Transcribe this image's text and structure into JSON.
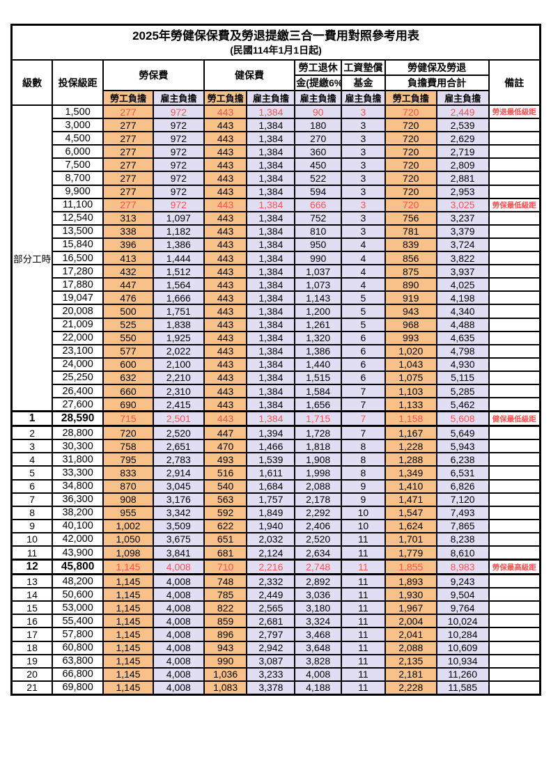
{
  "page": {
    "title": "2025年勞健保保費及勞退提繳三合一費用對照參考用表",
    "subtitle": "(民國114年1月1日起)"
  },
  "colors": {
    "employee_bg": "#F8C189",
    "employer_bg": "#E1DEF3",
    "highlight_text": "#FF5050",
    "border": "#000000"
  },
  "header": {
    "level": "級數",
    "bracket": "投保級距",
    "labor_insurance": "勞保費",
    "health_insurance": "健保費",
    "pension_line1": "勞工退休",
    "pension_line2": "金(提繳6%)",
    "wage_fund_line1": "工資墊償",
    "wage_fund_line2": "基金",
    "total_line1": "勞健保及勞退",
    "total_line2": "負擔費用合計",
    "note": "備註",
    "employee_label": "勞工負擔",
    "employer_label": "雇主負擔"
  },
  "part_time_label": "部分工時",
  "rows": [
    {
      "level": "",
      "bracket": "1,500",
      "values": [
        "277",
        "972",
        "443",
        "1,384",
        "90",
        "3",
        "720",
        "2,449"
      ],
      "note": "勞退最低級距",
      "highlight": true,
      "emphasize": false
    },
    {
      "level": "",
      "bracket": "3,000",
      "values": [
        "277",
        "972",
        "443",
        "1,384",
        "180",
        "3",
        "720",
        "2,539"
      ],
      "note": "",
      "highlight": false,
      "emphasize": false
    },
    {
      "level": "",
      "bracket": "4,500",
      "values": [
        "277",
        "972",
        "443",
        "1,384",
        "270",
        "3",
        "720",
        "2,629"
      ],
      "note": "",
      "highlight": false,
      "emphasize": false
    },
    {
      "level": "",
      "bracket": "6,000",
      "values": [
        "277",
        "972",
        "443",
        "1,384",
        "360",
        "3",
        "720",
        "2,719"
      ],
      "note": "",
      "highlight": false,
      "emphasize": false
    },
    {
      "level": "",
      "bracket": "7,500",
      "values": [
        "277",
        "972",
        "443",
        "1,384",
        "450",
        "3",
        "720",
        "2,809"
      ],
      "note": "",
      "highlight": false,
      "emphasize": false
    },
    {
      "level": "",
      "bracket": "8,700",
      "values": [
        "277",
        "972",
        "443",
        "1,384",
        "522",
        "3",
        "720",
        "2,881"
      ],
      "note": "",
      "highlight": false,
      "emphasize": false
    },
    {
      "level": "",
      "bracket": "9,900",
      "values": [
        "277",
        "972",
        "443",
        "1,384",
        "594",
        "3",
        "720",
        "2,953"
      ],
      "note": "",
      "highlight": false,
      "emphasize": false
    },
    {
      "level": "",
      "bracket": "11,100",
      "values": [
        "277",
        "972",
        "443",
        "1,384",
        "666",
        "3",
        "720",
        "3,025"
      ],
      "note": "勞保最低級距",
      "highlight": true,
      "emphasize": false
    },
    {
      "level": "",
      "bracket": "12,540",
      "values": [
        "313",
        "1,097",
        "443",
        "1,384",
        "752",
        "3",
        "756",
        "3,237"
      ],
      "note": "",
      "highlight": false,
      "emphasize": false
    },
    {
      "level": "",
      "bracket": "13,500",
      "values": [
        "338",
        "1,182",
        "443",
        "1,384",
        "810",
        "3",
        "781",
        "3,379"
      ],
      "note": "",
      "highlight": false,
      "emphasize": false
    },
    {
      "level": "",
      "bracket": "15,840",
      "values": [
        "396",
        "1,386",
        "443",
        "1,384",
        "950",
        "4",
        "839",
        "3,724"
      ],
      "note": "",
      "highlight": false,
      "emphasize": false
    },
    {
      "level": "",
      "bracket": "16,500",
      "values": [
        "413",
        "1,444",
        "443",
        "1,384",
        "990",
        "4",
        "856",
        "3,822"
      ],
      "note": "",
      "highlight": false,
      "emphasize": false
    },
    {
      "level": "",
      "bracket": "17,280",
      "values": [
        "432",
        "1,512",
        "443",
        "1,384",
        "1,037",
        "4",
        "875",
        "3,937"
      ],
      "note": "",
      "highlight": false,
      "emphasize": false
    },
    {
      "level": "",
      "bracket": "17,880",
      "values": [
        "447",
        "1,564",
        "443",
        "1,384",
        "1,073",
        "4",
        "890",
        "4,025"
      ],
      "note": "",
      "highlight": false,
      "emphasize": false
    },
    {
      "level": "",
      "bracket": "19,047",
      "values": [
        "476",
        "1,666",
        "443",
        "1,384",
        "1,143",
        "5",
        "919",
        "4,198"
      ],
      "note": "",
      "highlight": false,
      "emphasize": false
    },
    {
      "level": "",
      "bracket": "20,008",
      "values": [
        "500",
        "1,751",
        "443",
        "1,384",
        "1,200",
        "5",
        "943",
        "4,340"
      ],
      "note": "",
      "highlight": false,
      "emphasize": false
    },
    {
      "level": "",
      "bracket": "21,009",
      "values": [
        "525",
        "1,838",
        "443",
        "1,384",
        "1,261",
        "5",
        "968",
        "4,488"
      ],
      "note": "",
      "highlight": false,
      "emphasize": false
    },
    {
      "level": "",
      "bracket": "22,000",
      "values": [
        "550",
        "1,925",
        "443",
        "1,384",
        "1,320",
        "6",
        "993",
        "4,635"
      ],
      "note": "",
      "highlight": false,
      "emphasize": false
    },
    {
      "level": "",
      "bracket": "23,100",
      "values": [
        "577",
        "2,022",
        "443",
        "1,384",
        "1,386",
        "6",
        "1,020",
        "4,798"
      ],
      "note": "",
      "highlight": false,
      "emphasize": false
    },
    {
      "level": "",
      "bracket": "24,000",
      "values": [
        "600",
        "2,100",
        "443",
        "1,384",
        "1,440",
        "6",
        "1,043",
        "4,930"
      ],
      "note": "",
      "highlight": false,
      "emphasize": false
    },
    {
      "level": "",
      "bracket": "25,250",
      "values": [
        "632",
        "2,210",
        "443",
        "1,384",
        "1,515",
        "6",
        "1,075",
        "5,115"
      ],
      "note": "",
      "highlight": false,
      "emphasize": false
    },
    {
      "level": "",
      "bracket": "26,400",
      "values": [
        "660",
        "2,310",
        "443",
        "1,384",
        "1,584",
        "7",
        "1,103",
        "5,285"
      ],
      "note": "",
      "highlight": false,
      "emphasize": false
    },
    {
      "level": "",
      "bracket": "27,600",
      "values": [
        "690",
        "2,415",
        "443",
        "1,384",
        "1,656",
        "7",
        "1,133",
        "5,462"
      ],
      "note": "",
      "highlight": false,
      "emphasize": false
    },
    {
      "level": "1",
      "bracket": "28,590",
      "values": [
        "715",
        "2,501",
        "443",
        "1,384",
        "1,715",
        "7",
        "1,158",
        "5,608"
      ],
      "note": "健保最低級距",
      "highlight": true,
      "emphasize": true
    },
    {
      "level": "2",
      "bracket": "28,800",
      "values": [
        "720",
        "2,520",
        "447",
        "1,394",
        "1,728",
        "7",
        "1,167",
        "5,649"
      ],
      "note": "",
      "highlight": false,
      "emphasize": false
    },
    {
      "level": "3",
      "bracket": "30,300",
      "values": [
        "758",
        "2,651",
        "470",
        "1,466",
        "1,818",
        "8",
        "1,228",
        "5,943"
      ],
      "note": "",
      "highlight": false,
      "emphasize": false
    },
    {
      "level": "4",
      "bracket": "31,800",
      "values": [
        "795",
        "2,783",
        "493",
        "1,539",
        "1,908",
        "8",
        "1,288",
        "6,238"
      ],
      "note": "",
      "highlight": false,
      "emphasize": false
    },
    {
      "level": "5",
      "bracket": "33,300",
      "values": [
        "833",
        "2,914",
        "516",
        "1,611",
        "1,998",
        "8",
        "1,349",
        "6,531"
      ],
      "note": "",
      "highlight": false,
      "emphasize": false
    },
    {
      "level": "6",
      "bracket": "34,800",
      "values": [
        "870",
        "3,045",
        "540",
        "1,684",
        "2,088",
        "9",
        "1,410",
        "6,826"
      ],
      "note": "",
      "highlight": false,
      "emphasize": false
    },
    {
      "level": "7",
      "bracket": "36,300",
      "values": [
        "908",
        "3,176",
        "563",
        "1,757",
        "2,178",
        "9",
        "1,471",
        "7,120"
      ],
      "note": "",
      "highlight": false,
      "emphasize": false
    },
    {
      "level": "8",
      "bracket": "38,200",
      "values": [
        "955",
        "3,342",
        "592",
        "1,849",
        "2,292",
        "10",
        "1,547",
        "7,493"
      ],
      "note": "",
      "highlight": false,
      "emphasize": false
    },
    {
      "level": "9",
      "bracket": "40,100",
      "values": [
        "1,002",
        "3,509",
        "622",
        "1,940",
        "2,406",
        "10",
        "1,624",
        "7,865"
      ],
      "note": "",
      "highlight": false,
      "emphasize": false
    },
    {
      "level": "10",
      "bracket": "42,000",
      "values": [
        "1,050",
        "3,675",
        "651",
        "2,032",
        "2,520",
        "11",
        "1,701",
        "8,238"
      ],
      "note": "",
      "highlight": false,
      "emphasize": false
    },
    {
      "level": "11",
      "bracket": "43,900",
      "values": [
        "1,098",
        "3,841",
        "681",
        "2,124",
        "2,634",
        "11",
        "1,779",
        "8,610"
      ],
      "note": "",
      "highlight": false,
      "emphasize": false
    },
    {
      "level": "12",
      "bracket": "45,800",
      "values": [
        "1,145",
        "4,008",
        "710",
        "2,216",
        "2,748",
        "11",
        "1,855",
        "8,983"
      ],
      "note": "勞保最高級距",
      "highlight": true,
      "emphasize": true
    },
    {
      "level": "13",
      "bracket": "48,200",
      "values": [
        "1,145",
        "4,008",
        "748",
        "2,332",
        "2,892",
        "11",
        "1,893",
        "9,243"
      ],
      "note": "",
      "highlight": false,
      "emphasize": false
    },
    {
      "level": "14",
      "bracket": "50,600",
      "values": [
        "1,145",
        "4,008",
        "785",
        "2,449",
        "3,036",
        "11",
        "1,930",
        "9,504"
      ],
      "note": "",
      "highlight": false,
      "emphasize": false
    },
    {
      "level": "15",
      "bracket": "53,000",
      "values": [
        "1,145",
        "4,008",
        "822",
        "2,565",
        "3,180",
        "11",
        "1,967",
        "9,764"
      ],
      "note": "",
      "highlight": false,
      "emphasize": false
    },
    {
      "level": "16",
      "bracket": "55,400",
      "values": [
        "1,145",
        "4,008",
        "859",
        "2,681",
        "3,324",
        "11",
        "2,004",
        "10,024"
      ],
      "note": "",
      "highlight": false,
      "emphasize": false
    },
    {
      "level": "17",
      "bracket": "57,800",
      "values": [
        "1,145",
        "4,008",
        "896",
        "2,797",
        "3,468",
        "11",
        "2,041",
        "10,284"
      ],
      "note": "",
      "highlight": false,
      "emphasize": false
    },
    {
      "level": "18",
      "bracket": "60,800",
      "values": [
        "1,145",
        "4,008",
        "943",
        "2,942",
        "3,648",
        "11",
        "2,088",
        "10,609"
      ],
      "note": "",
      "highlight": false,
      "emphasize": false
    },
    {
      "level": "19",
      "bracket": "63,800",
      "values": [
        "1,145",
        "4,008",
        "990",
        "3,087",
        "3,828",
        "11",
        "2,135",
        "10,934"
      ],
      "note": "",
      "highlight": false,
      "emphasize": false
    },
    {
      "level": "20",
      "bracket": "66,800",
      "values": [
        "1,145",
        "4,008",
        "1,036",
        "3,233",
        "4,008",
        "11",
        "2,181",
        "11,260"
      ],
      "note": "",
      "highlight": false,
      "emphasize": false
    },
    {
      "level": "21",
      "bracket": "69,800",
      "values": [
        "1,145",
        "4,008",
        "1,083",
        "3,378",
        "4,188",
        "11",
        "2,228",
        "11,585"
      ],
      "note": "",
      "highlight": false,
      "emphasize": false
    }
  ]
}
